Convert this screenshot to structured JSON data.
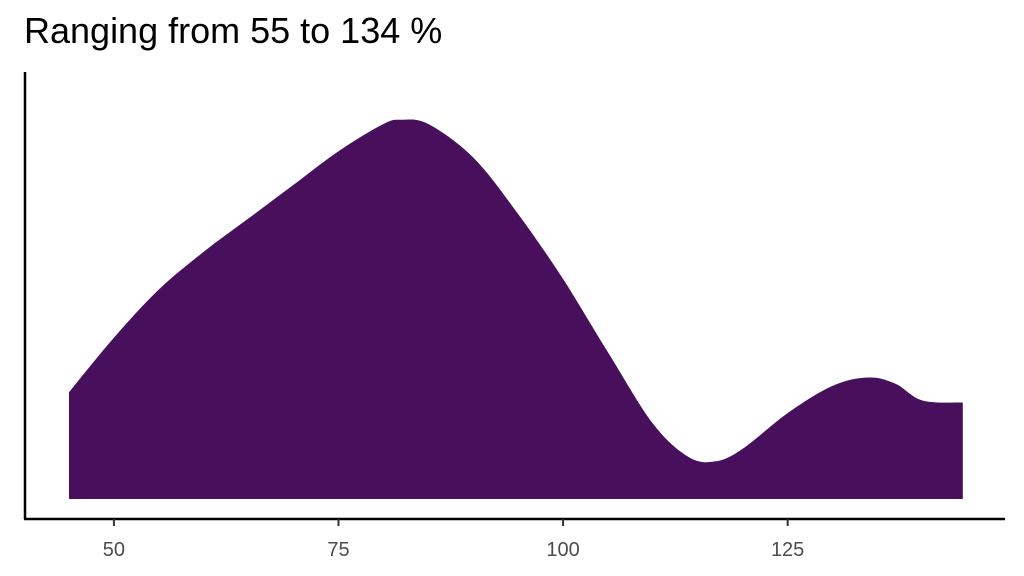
{
  "chart_data": {
    "type": "area",
    "title": "Ranging from 55 to 134 %",
    "xlabel": "",
    "ylabel": "",
    "xlim": [
      40,
      147
    ],
    "ylim": [
      0,
      1
    ],
    "grid": false,
    "x_ticks": [
      50,
      75,
      100,
      125
    ],
    "x_tick_labels": [
      "50",
      "75",
      "100",
      "125"
    ],
    "fill_color": "#48105c",
    "series": [
      {
        "x": [
          45,
          50,
          55,
          60,
          65,
          70,
          75,
          80,
          82,
          85,
          90,
          95,
          100,
          105,
          110,
          114,
          117,
          120,
          125,
          130,
          134,
          137,
          140,
          144.5
        ],
        "y": [
          0.255,
          0.385,
          0.5,
          0.59,
          0.67,
          0.75,
          0.83,
          0.895,
          0.905,
          0.895,
          0.815,
          0.68,
          0.525,
          0.35,
          0.18,
          0.1,
          0.09,
          0.12,
          0.205,
          0.27,
          0.29,
          0.275,
          0.235,
          0.23
        ]
      }
    ]
  }
}
